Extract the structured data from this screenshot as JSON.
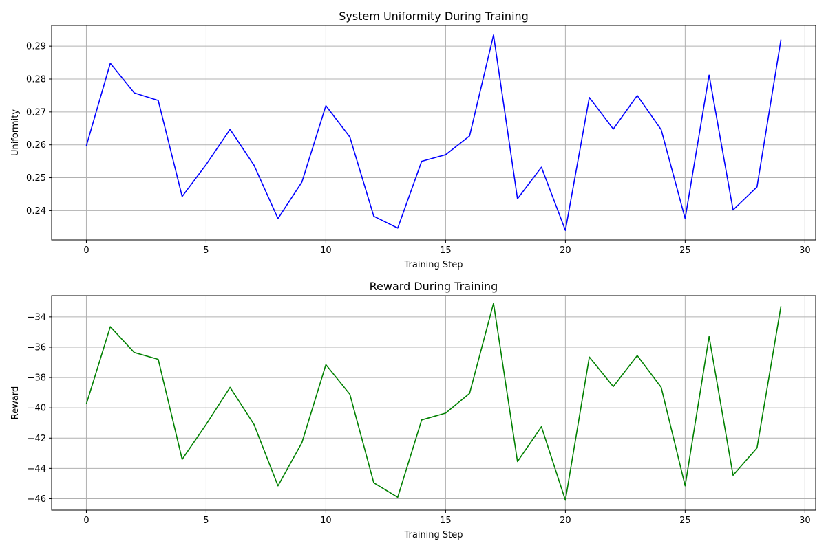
{
  "chart_data": [
    {
      "type": "line",
      "title": "System Uniformity During Training",
      "xlabel": "Training Step",
      "ylabel": "Uniformity",
      "xlim": [
        -1.45,
        30.45
      ],
      "ylim": [
        0.2311,
        0.2963
      ],
      "xticks": [
        0,
        5,
        10,
        15,
        20,
        25,
        30
      ],
      "yticks": [
        0.24,
        0.25,
        0.26,
        0.27,
        0.28,
        0.29
      ],
      "xtick_labels": [
        "0",
        "5",
        "10",
        "15",
        "20",
        "25",
        "30"
      ],
      "ytick_labels": [
        "0.24",
        "0.25",
        "0.26",
        "0.27",
        "0.28",
        "0.29"
      ],
      "grid": true,
      "series": [
        {
          "color": "#0000ff",
          "x": [
            0,
            1,
            2,
            3,
            4,
            5,
            6,
            7,
            8,
            9,
            10,
            11,
            12,
            13,
            14,
            15,
            16,
            17,
            18,
            19,
            20,
            21,
            22,
            23,
            24,
            25,
            26,
            27,
            28,
            29
          ],
          "y": [
            0.2597,
            0.2848,
            0.2758,
            0.2735,
            0.2443,
            0.254,
            0.2647,
            0.2538,
            0.2376,
            0.2487,
            0.2719,
            0.2624,
            0.2383,
            0.2347,
            0.255,
            0.257,
            0.2627,
            0.2934,
            0.2436,
            0.2532,
            0.234,
            0.2744,
            0.2648,
            0.275,
            0.2646,
            0.2376,
            0.2812,
            0.2402,
            0.2472,
            0.292
          ]
        }
      ]
    },
    {
      "type": "line",
      "title": "Reward During Training",
      "xlabel": "Training Step",
      "ylabel": "Reward",
      "xlim": [
        -1.45,
        30.45
      ],
      "ylim": [
        -46.75,
        -32.6
      ],
      "xticks": [
        0,
        5,
        10,
        15,
        20,
        25,
        30
      ],
      "yticks": [
        -46,
        -44,
        -42,
        -40,
        -38,
        -36,
        -34
      ],
      "xtick_labels": [
        "0",
        "5",
        "10",
        "15",
        "20",
        "25",
        "30"
      ],
      "ytick_labels": [
        "−46",
        "−44",
        "−42",
        "−40",
        "−38",
        "−36",
        "−34"
      ],
      "grid": true,
      "series": [
        {
          "color": "#008000",
          "x": [
            0,
            1,
            2,
            3,
            4,
            5,
            6,
            7,
            8,
            9,
            10,
            11,
            12,
            13,
            14,
            15,
            16,
            17,
            18,
            19,
            20,
            21,
            22,
            23,
            24,
            25,
            26,
            27,
            28,
            29
          ],
          "y": [
            -39.75,
            -34.65,
            -36.35,
            -36.8,
            -43.4,
            -41.1,
            -38.65,
            -41.1,
            -45.15,
            -42.3,
            -37.15,
            -39.1,
            -44.95,
            -45.9,
            -40.8,
            -40.35,
            -39.05,
            -33.1,
            -43.55,
            -41.25,
            -46.1,
            -36.65,
            -38.6,
            -36.55,
            -38.65,
            -45.15,
            -35.3,
            -44.45,
            -42.65,
            -33.3
          ]
        }
      ]
    }
  ]
}
